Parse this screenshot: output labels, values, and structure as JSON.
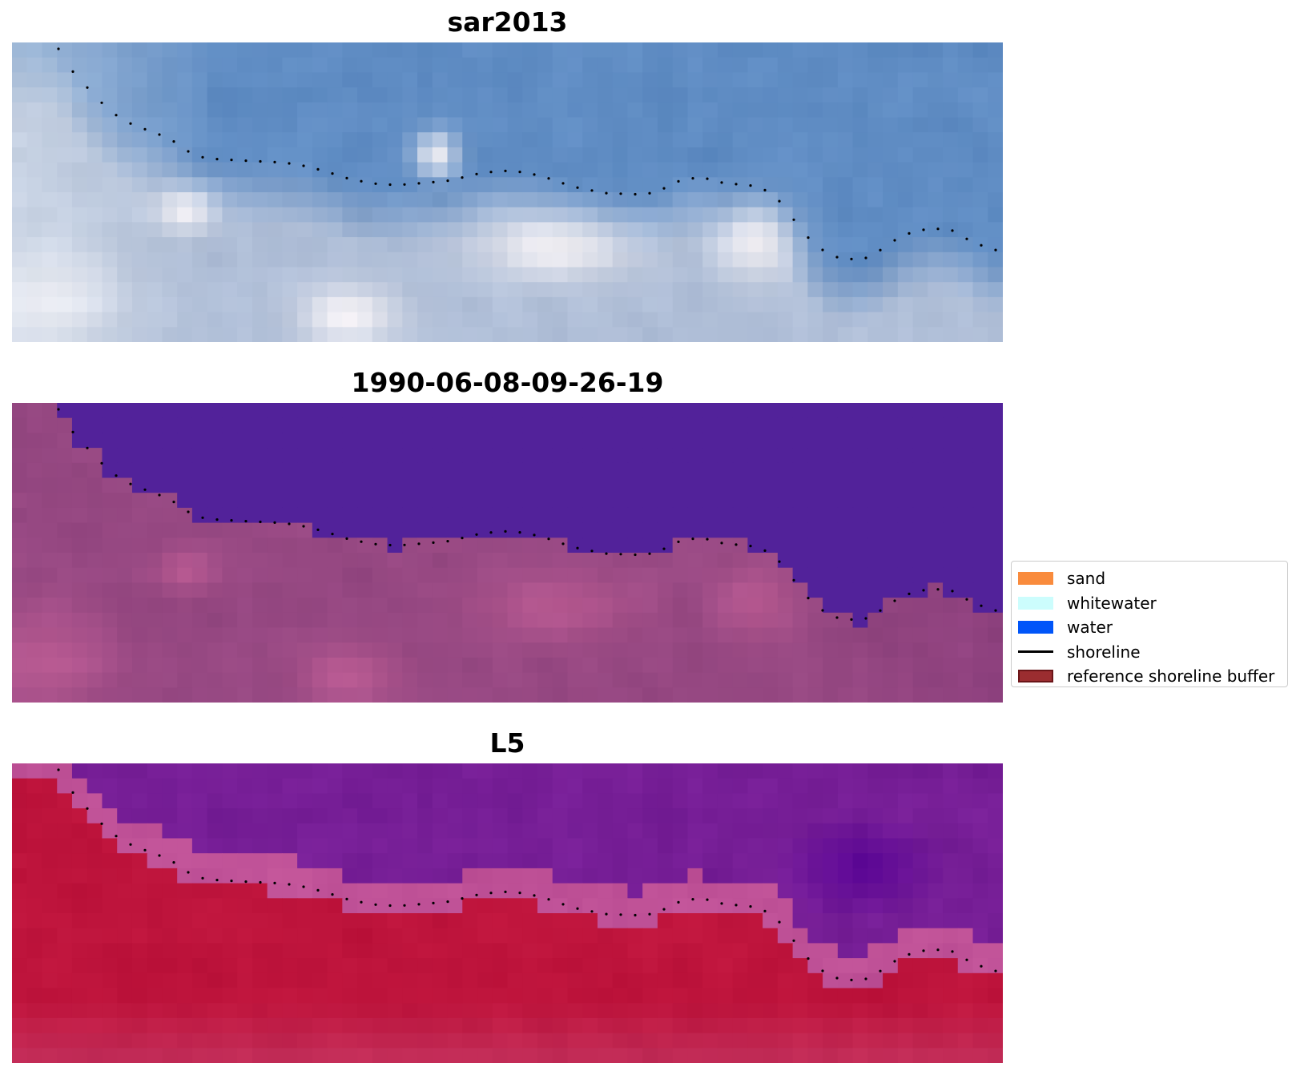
{
  "panels": [
    {
      "id": "rgb",
      "title": "sar2013",
      "style": "rgb"
    },
    {
      "id": "classified",
      "title": "1990-06-08-09-26-19",
      "style": "classified"
    },
    {
      "id": "index",
      "title": "L5",
      "style": "index"
    }
  ],
  "legend": {
    "items": [
      {
        "label": "sand",
        "color": "#f98b3d",
        "kind": "patch"
      },
      {
        "label": "whitewater",
        "color": "#ccfdfd",
        "kind": "patch"
      },
      {
        "label": "water",
        "color": "#0055f9",
        "kind": "patch"
      },
      {
        "label": "shoreline",
        "color": "#000000",
        "kind": "line"
      },
      {
        "label": "reference shoreline buffer",
        "color": "#9b2d30",
        "kind": "patch",
        "edge": "#6b1518"
      }
    ]
  },
  "colors": {
    "classified_water": "#52229a",
    "shoreline_points": "#000000"
  }
}
